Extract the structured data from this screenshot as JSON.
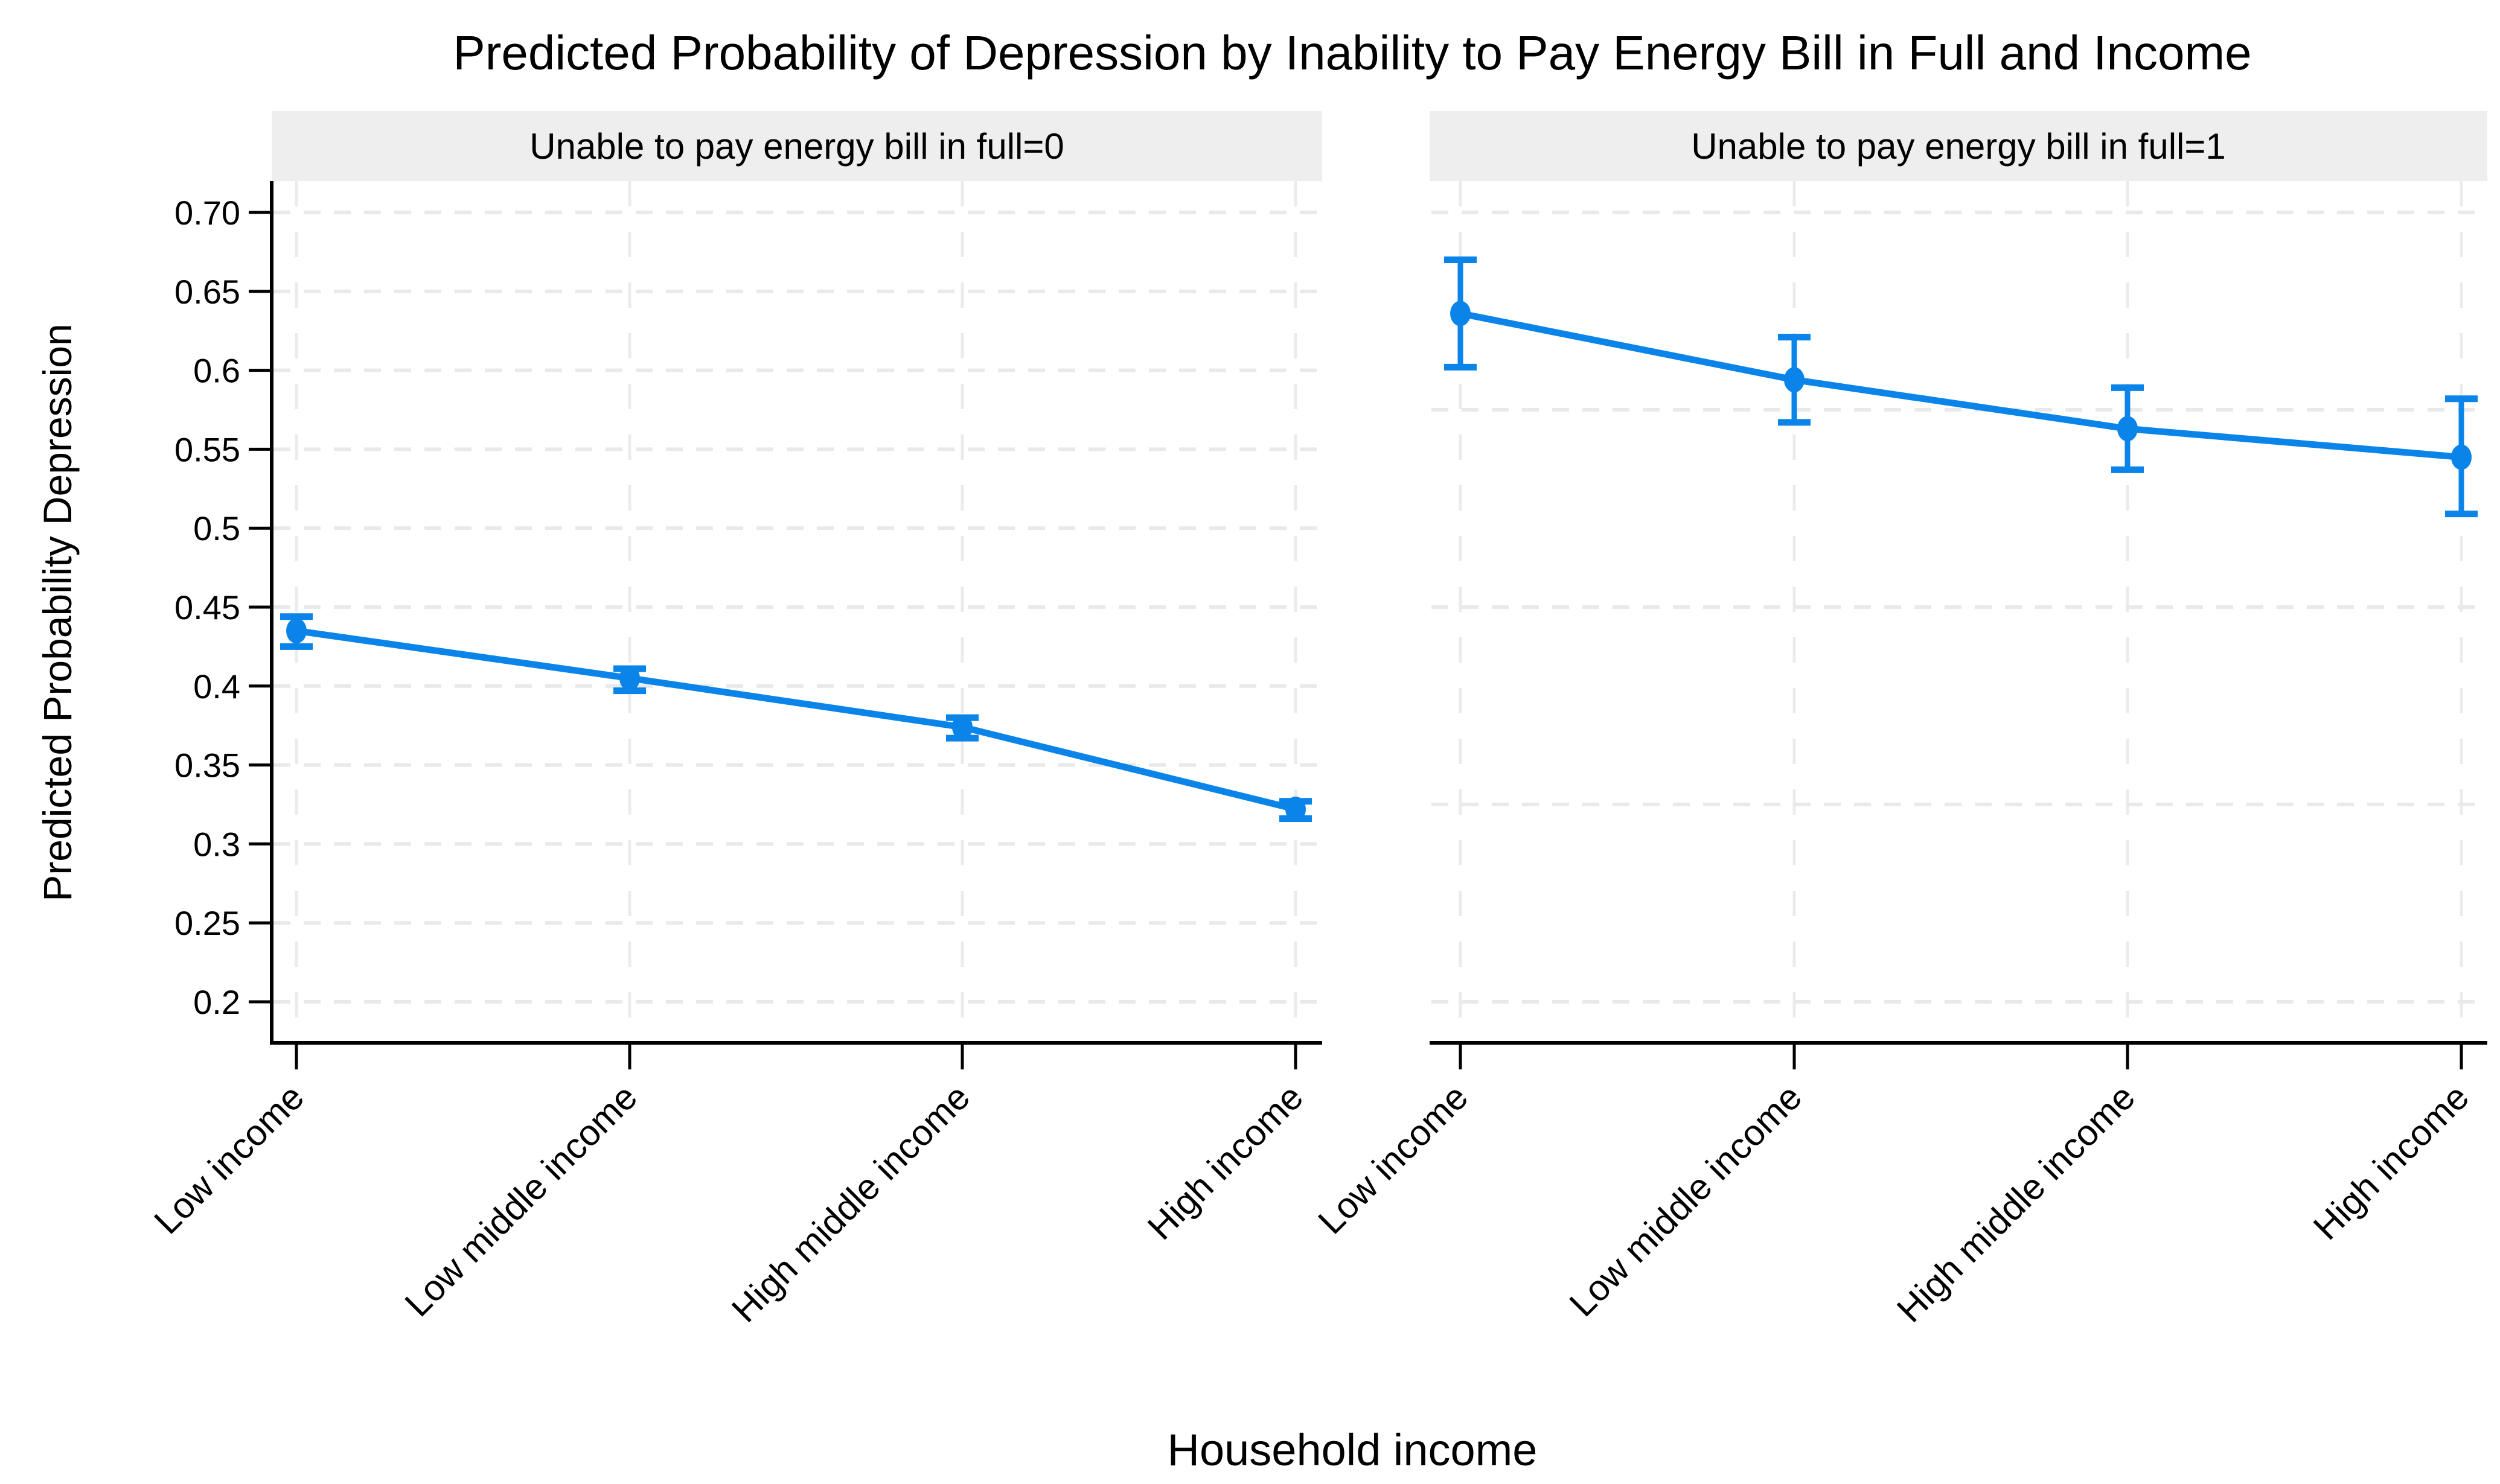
{
  "chart_data": {
    "type": "line",
    "title": "Predicted Probability of Depression by Inability to Pay Energy Bill in Full and Income",
    "xlabel": "Household income",
    "ylabel": "Predicted Probability Depression",
    "ylim": [
      0.2,
      0.7
    ],
    "grid": "dashed, light gray; vertical line at each category; error bars show 95% CI",
    "legend_position": "none",
    "categories": [
      "Low income",
      "Low middle income",
      "High middle income",
      "High income"
    ],
    "y_ticks": [
      {
        "label": "0.70",
        "value": 0.7
      },
      {
        "label": "0.65",
        "value": 0.65
      },
      {
        "label": "0.6",
        "value": 0.6
      },
      {
        "label": "0.55",
        "value": 0.55
      },
      {
        "label": "0.5",
        "value": 0.5
      },
      {
        "label": "0.45",
        "value": 0.45
      },
      {
        "label": "0.4",
        "value": 0.4
      },
      {
        "label": "0.35",
        "value": 0.35
      },
      {
        "label": "0.3",
        "value": 0.3
      },
      {
        "label": "0.25",
        "value": 0.25
      },
      {
        "label": "0.2",
        "value": 0.2
      }
    ],
    "facets": [
      {
        "title": "Unable to pay energy bill in full=0",
        "values": [
          0.435,
          0.405,
          0.374,
          0.322
        ],
        "ci_low": [
          0.425,
          0.397,
          0.367,
          0.316
        ],
        "ci_high": [
          0.444,
          0.411,
          0.38,
          0.327
        ],
        "y_gridlines": [
          0.7,
          0.65,
          0.6,
          0.55,
          0.5,
          0.45,
          0.4,
          0.35,
          0.3,
          0.25,
          0.2
        ]
      },
      {
        "title": "Unable to pay energy bill in full=1",
        "values": [
          0.636,
          0.594,
          0.563,
          0.545
        ],
        "ci_low": [
          0.602,
          0.567,
          0.537,
          0.509
        ],
        "ci_high": [
          0.67,
          0.621,
          0.589,
          0.582
        ],
        "y_gridlines": [
          0.7,
          0.575,
          0.45,
          0.325,
          0.2
        ]
      }
    ],
    "colors": {
      "series": "#0a84e8",
      "header_bg": "#eeeeee",
      "gridline_h": "#e9e9e9",
      "gridline_v": "#ebebeb",
      "axis": "#000000"
    }
  }
}
